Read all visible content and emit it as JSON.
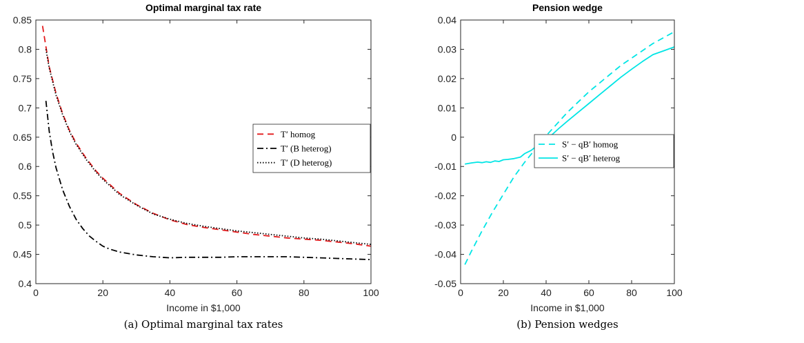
{
  "captions": [
    "(a) Optimal marginal tax rates",
    "(b) Pension wedges"
  ],
  "chart_data": [
    {
      "type": "line",
      "title": "Optimal marginal tax rate",
      "xlabel": "Income in $1,000",
      "ylabel": "",
      "xlim": [
        0,
        100
      ],
      "ylim": [
        0.4,
        0.85
      ],
      "xticks": [
        0,
        20,
        40,
        60,
        80,
        100
      ],
      "yticks": [
        0.4,
        0.45,
        0.5,
        0.55,
        0.6,
        0.65,
        0.7,
        0.75,
        0.8,
        0.85
      ],
      "xtick_labels": [
        "0",
        "20",
        "40",
        "60",
        "80",
        "100"
      ],
      "ytick_labels": [
        "0.4",
        "0.45",
        "0.5",
        "0.55",
        "0.6",
        "0.65",
        "0.7",
        "0.75",
        "0.8",
        "0.85"
      ],
      "legend_position": "center-right",
      "series": [
        {
          "name": "T′ homog",
          "color": "#e31a1c",
          "dash": "dashed",
          "x": [
            2,
            4,
            6,
            8,
            10,
            12,
            15,
            18,
            20,
            25,
            30,
            35,
            40,
            45,
            50,
            55,
            60,
            65,
            70,
            75,
            80,
            85,
            90,
            95,
            100
          ],
          "y": [
            0.84,
            0.77,
            0.725,
            0.69,
            0.662,
            0.64,
            0.614,
            0.592,
            0.58,
            0.554,
            0.535,
            0.52,
            0.509,
            0.501,
            0.496,
            0.492,
            0.488,
            0.484,
            0.481,
            0.478,
            0.476,
            0.474,
            0.471,
            0.468,
            0.464
          ]
        },
        {
          "name": "T′ (B heterog)",
          "color": "#000000",
          "dash": "dashdot",
          "x": [
            3,
            4,
            5,
            6,
            8,
            10,
            12,
            14,
            16,
            18,
            20,
            22,
            25,
            30,
            35,
            40,
            45,
            50,
            55,
            60,
            65,
            70,
            75,
            80,
            85,
            90,
            95,
            100
          ],
          "y": [
            0.712,
            0.66,
            0.625,
            0.598,
            0.56,
            0.532,
            0.51,
            0.494,
            0.481,
            0.472,
            0.464,
            0.459,
            0.454,
            0.449,
            0.446,
            0.444,
            0.445,
            0.445,
            0.445,
            0.446,
            0.446,
            0.446,
            0.446,
            0.445,
            0.444,
            0.443,
            0.442,
            0.441
          ]
        },
        {
          "name": "T′ (D heterog)",
          "color": "#000000",
          "dash": "dotted",
          "x": [
            3,
            4,
            6,
            8,
            10,
            12,
            15,
            18,
            20,
            25,
            30,
            35,
            40,
            45,
            50,
            55,
            60,
            65,
            70,
            75,
            80,
            85,
            90,
            95,
            100
          ],
          "y": [
            0.8,
            0.768,
            0.722,
            0.688,
            0.66,
            0.638,
            0.612,
            0.59,
            0.578,
            0.552,
            0.534,
            0.519,
            0.51,
            0.503,
            0.498,
            0.494,
            0.49,
            0.487,
            0.484,
            0.481,
            0.478,
            0.476,
            0.473,
            0.47,
            0.467
          ]
        }
      ]
    },
    {
      "type": "line",
      "title": "Pension wedge",
      "xlabel": "Income in $1,000",
      "ylabel": "",
      "xlim": [
        0,
        100
      ],
      "ylim": [
        -0.05,
        0.04
      ],
      "xticks": [
        0,
        20,
        40,
        60,
        80,
        100
      ],
      "yticks": [
        -0.05,
        -0.04,
        -0.03,
        -0.02,
        -0.01,
        0,
        0.01,
        0.02,
        0.03,
        0.04
      ],
      "xtick_labels": [
        "0",
        "20",
        "40",
        "60",
        "80",
        "100"
      ],
      "ytick_labels": [
        "-0.05",
        "-0.04",
        "-0.03",
        "-0.02",
        "-0.01",
        "0",
        "0.01",
        "0.02",
        "0.03",
        "0.04"
      ],
      "legend_position": "center-right",
      "series": [
        {
          "name": "S′ − qB′ homog",
          "color": "#00e5e5",
          "dash": "dashed",
          "x": [
            2,
            5,
            10,
            15,
            20,
            25,
            30,
            35,
            40,
            45,
            50,
            55,
            60,
            65,
            70,
            75,
            80,
            85,
            90,
            95,
            100
          ],
          "y": [
            -0.0435,
            -0.039,
            -0.032,
            -0.0255,
            -0.0195,
            -0.0135,
            -0.0085,
            -0.004,
            0.0005,
            0.0045,
            0.0085,
            0.012,
            0.0155,
            0.0185,
            0.0215,
            0.0245,
            0.027,
            0.0295,
            0.032,
            0.034,
            0.036
          ]
        },
        {
          "name": "S′ − qB′ heterog",
          "color": "#00e5e5",
          "dash": "solid",
          "x": [
            2,
            5,
            8,
            10,
            12,
            14,
            16,
            18,
            20,
            22,
            25,
            28,
            30,
            33,
            36,
            40,
            43,
            46,
            50,
            55,
            60,
            65,
            70,
            75,
            80,
            85,
            90,
            95,
            100
          ],
          "y": [
            -0.0092,
            -0.0088,
            -0.0085,
            -0.0087,
            -0.0084,
            -0.0086,
            -0.0081,
            -0.0083,
            -0.0077,
            -0.0076,
            -0.0073,
            -0.0068,
            -0.0056,
            -0.0045,
            -0.0028,
            -0.0008,
            0.001,
            0.003,
            0.0055,
            0.0085,
            0.0115,
            0.0145,
            0.0175,
            0.0205,
            0.0232,
            0.0258,
            0.0282,
            0.0295,
            0.0308
          ]
        }
      ]
    }
  ]
}
